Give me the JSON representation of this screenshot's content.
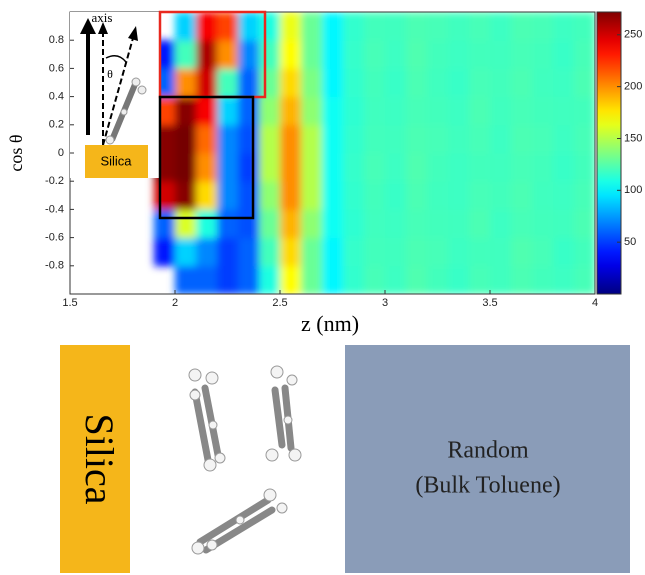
{
  "chart_data": {
    "type": "heatmap",
    "x_label": "z  (nm)",
    "y_label": "cos θ",
    "xlim": [
      1.5,
      4
    ],
    "xticks": [
      1.5,
      2,
      2.5,
      3,
      3.5,
      4
    ],
    "ylim": [
      -1,
      1
    ],
    "yticks": [
      -0.8,
      -0.6,
      -0.4,
      -0.2,
      0,
      0.2,
      0.4,
      0.6,
      0.8
    ],
    "clim": [
      0,
      272
    ],
    "cticks": [
      50,
      100,
      150,
      200,
      250
    ],
    "colormap": "jet",
    "x_bins": [
      1.9,
      2.0,
      2.1,
      2.2,
      2.3,
      2.4,
      2.5,
      2.6,
      2.7,
      2.8,
      2.9,
      3.0,
      3.1,
      3.2,
      3.3,
      3.4,
      3.5,
      3.6,
      3.7,
      3.8,
      3.9,
      4.0
    ],
    "y_bins": [
      -1,
      -0.8,
      -0.6,
      -0.4,
      -0.2,
      0,
      0.2,
      0.4,
      0.6,
      0.8,
      1
    ],
    "values": [
      [
        null,
        60,
        60,
        50,
        60,
        110,
        170,
        130,
        100,
        115,
        121,
        118,
        123,
        120,
        117,
        121,
        119,
        122,
        120,
        118,
        121
      ],
      [
        40,
        90,
        70,
        50,
        60,
        120,
        180,
        130,
        100,
        116,
        120,
        119,
        122,
        121,
        118,
        120,
        119,
        123,
        121,
        117,
        120
      ],
      [
        60,
        160,
        110,
        60,
        55,
        130,
        190,
        140,
        105,
        114,
        119,
        118,
        121,
        120,
        119,
        122,
        118,
        121,
        120,
        119,
        122
      ],
      [
        250,
        270,
        180,
        70,
        55,
        140,
        200,
        150,
        105,
        115,
        120,
        117,
        122,
        119,
        118,
        121,
        120,
        122,
        119,
        118,
        121
      ],
      [
        270,
        275,
        200,
        70,
        50,
        150,
        200,
        150,
        105,
        116,
        121,
        118,
        123,
        120,
        118,
        120,
        119,
        121,
        120,
        117,
        120
      ],
      [
        270,
        275,
        210,
        70,
        55,
        150,
        200,
        150,
        105,
        115,
        120,
        119,
        122,
        121,
        119,
        121,
        118,
        122,
        121,
        118,
        121
      ],
      [
        220,
        270,
        240,
        90,
        60,
        140,
        190,
        140,
        105,
        114,
        119,
        118,
        121,
        120,
        118,
        122,
        119,
        121,
        120,
        119,
        120
      ],
      [
        60,
        200,
        250,
        120,
        60,
        130,
        180,
        135,
        100,
        115,
        120,
        117,
        122,
        119,
        117,
        121,
        120,
        122,
        119,
        118,
        122
      ],
      [
        40,
        120,
        260,
        200,
        70,
        120,
        170,
        130,
        100,
        116,
        121,
        118,
        123,
        120,
        118,
        120,
        119,
        121,
        120,
        117,
        121
      ],
      [
        null,
        90,
        240,
        220,
        90,
        110,
        165,
        130,
        100,
        115,
        120,
        119,
        122,
        121,
        119,
        121,
        118,
        122,
        121,
        118,
        120
      ]
    ]
  },
  "inset": {
    "axis_label": "axis",
    "angle_label": "θ",
    "surface_label": "Silica"
  },
  "panel": {
    "surface_label": "Silica",
    "bulk_label": [
      "Random",
      "(Bulk Toluene)"
    ]
  }
}
